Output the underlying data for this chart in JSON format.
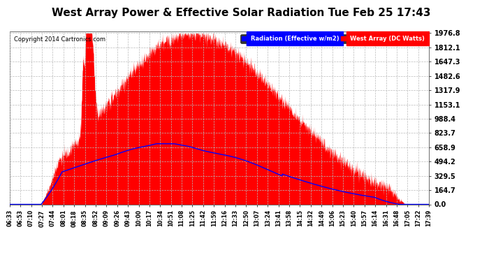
{
  "title": "West Array Power & Effective Solar Radiation Tue Feb 25 17:43",
  "copyright": "Copyright 2014 Cartronics.com",
  "legend_labels": [
    "Radiation (Effective w/m2)",
    "West Array (DC Watts)"
  ],
  "legend_colors": [
    "#0000ff",
    "#ff0000"
  ],
  "y_ticks": [
    0.0,
    164.7,
    329.5,
    494.2,
    658.9,
    823.7,
    988.4,
    1153.1,
    1317.9,
    1482.6,
    1647.3,
    1812.1,
    1976.8
  ],
  "y_max": 1976.8,
  "background_color": "#ffffff",
  "plot_bg_color": "#ffffff",
  "grid_color": "#bbbbbb",
  "red_fill_color": "#ff0000",
  "blue_line_color": "#0000ff",
  "title_fontsize": 11,
  "x_tick_labels": [
    "06:33",
    "06:53",
    "07:10",
    "07:27",
    "07:44",
    "08:01",
    "08:18",
    "08:35",
    "08:52",
    "09:09",
    "09:26",
    "09:43",
    "10:00",
    "10:17",
    "10:34",
    "10:51",
    "11:08",
    "11:25",
    "11:42",
    "11:59",
    "12:16",
    "12:33",
    "12:50",
    "13:07",
    "13:24",
    "13:41",
    "13:58",
    "14:15",
    "14:32",
    "14:49",
    "15:06",
    "15:23",
    "15:40",
    "15:57",
    "16:14",
    "16:31",
    "16:48",
    "17:05",
    "17:22",
    "17:39"
  ]
}
